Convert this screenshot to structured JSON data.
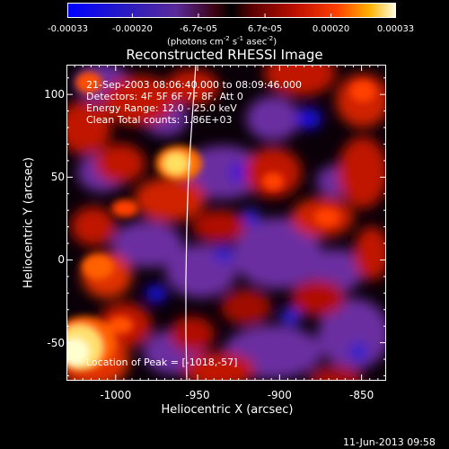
{
  "colorbar": {
    "ticks": [
      "-0.00033",
      "-0.00020",
      "-6.7e-05",
      "6.7e-05",
      "0.00020",
      "0.00033"
    ],
    "tick_values": [
      -0.00033,
      -0.0002,
      -6.7e-05,
      6.7e-05,
      0.0002,
      0.00033
    ],
    "unit": "(photons cm",
    "unit_exp1": "-2",
    "unit_mid": " s",
    "unit_exp2": "-1",
    "unit_end": " asec",
    "unit_exp3": "-2",
    "unit_close": ")"
  },
  "title": "Reconstructed RHESSI Image",
  "info": {
    "time": "21-Sep-2003 08:06:40.000 to 08:09:46.000",
    "detectors": "Detectors: 4F 5F 6F 7F 8F, Att 0",
    "energy": "Energy Range: 12.0 - 25.0 keV",
    "clean": "Clean     Total counts: 1.86E+03",
    "peak": "Location of Peak = [-1018,-57]"
  },
  "x_axis": {
    "label": "Heliocentric X (arcsec)",
    "range": [
      -1030,
      -835
    ],
    "ticks": [
      "-1000",
      "-950",
      "-900",
      "-850"
    ],
    "tick_values": [
      -1000,
      -950,
      -900,
      -850
    ]
  },
  "y_axis": {
    "label": "Heliocentric Y (arcsec)",
    "range": [
      -73,
      118
    ],
    "ticks": [
      "100",
      "50",
      "0",
      "-50"
    ],
    "tick_values": [
      100,
      50,
      0,
      -50
    ]
  },
  "footer": {
    "date": "11-Jun-2013 09:58"
  },
  "colors": {
    "background": "#000000",
    "text": "#ffffff",
    "bright": "#ffffc0",
    "hot": "#ff3000",
    "dark_red": "#6a0000",
    "purple": "#6a2fa0",
    "blue": "#1010ff"
  }
}
